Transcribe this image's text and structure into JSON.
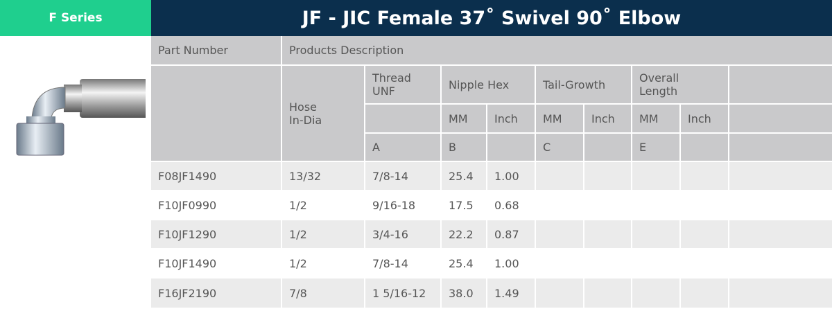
{
  "header": {
    "series": "F Series",
    "title": "JF - JIC Female 37˚ Swivel 90˚ Elbow"
  },
  "table": {
    "part_number": "Part Number",
    "products_description": "Products Description",
    "hose_in_dia": "Hose In-Dia",
    "thread_unf": "Thread UNF",
    "nipple_hex": "Nipple Hex",
    "tail_growth": "Tail-Growth",
    "overall_length": "Overall Length",
    "units": [
      "MM",
      "Inch",
      "MM",
      "Inch",
      "MM",
      "Inch"
    ],
    "letters": [
      "A",
      "B",
      "C",
      "E"
    ],
    "rows": [
      [
        "F08JF1490",
        "13/32",
        "7/8-14",
        "25.4",
        "1.00"
      ],
      [
        "F10JF0990",
        "1/2",
        "9/16-18",
        "17.5",
        "0.68"
      ],
      [
        "F10JF1290",
        "1/2",
        "3/4-16",
        "22.2",
        "0.87"
      ],
      [
        "F10JF1490",
        "1/2",
        "7/8-14",
        "25.4",
        "1.00"
      ],
      [
        "F16JF2190",
        "7/8",
        "1 5/16-12",
        "38.0",
        "1.49"
      ]
    ]
  }
}
